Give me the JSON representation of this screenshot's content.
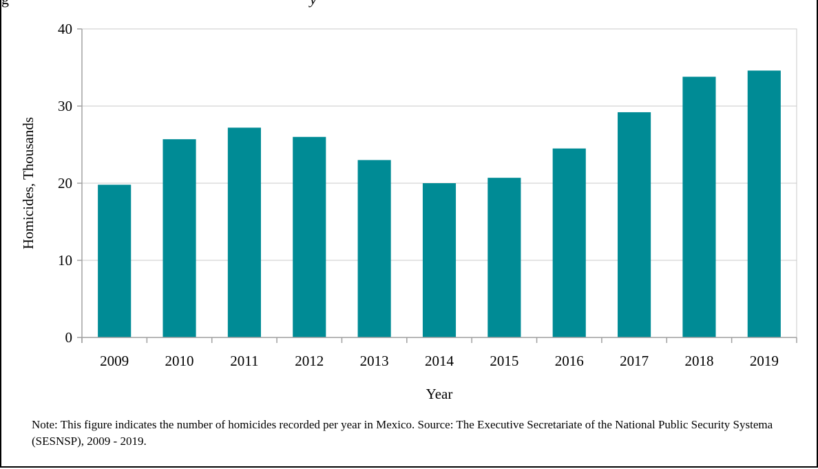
{
  "colors": {
    "bar": "#008b95",
    "grid": "#c8c8c8",
    "axis": "#a0a0a0",
    "text": "#000000"
  },
  "chart_data": {
    "type": "bar",
    "categories": [
      "2009",
      "2010",
      "2011",
      "2012",
      "2013",
      "2014",
      "2015",
      "2016",
      "2017",
      "2018",
      "2019"
    ],
    "values": [
      19.8,
      25.7,
      27.2,
      26.0,
      23.0,
      20.0,
      20.7,
      24.5,
      29.2,
      33.8,
      34.6
    ],
    "ylim": [
      0,
      40
    ],
    "yticks": [
      "0",
      "10",
      "20",
      "30",
      "40"
    ],
    "xlabel": "Year",
    "ylabel": "Homicides, Thousands",
    "title": "",
    "grid": true,
    "legend": "none"
  },
  "note": "Note: This figure indicates the number of homicides recorded per year in Mexico. Source: The Executive Secretariate of the National Public Security Systema (SESNSP), 2009 - 2019."
}
